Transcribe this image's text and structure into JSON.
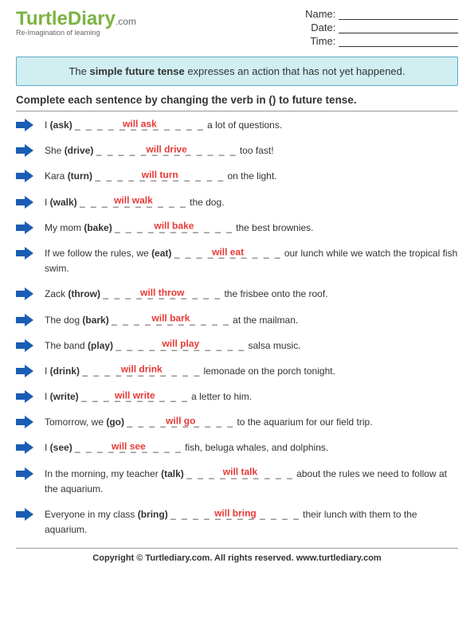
{
  "logo": {
    "part1": "Turtle",
    "part2": "Diary",
    "suffix": ".com",
    "tagline": "Re-Imagination of learning"
  },
  "meta": {
    "fields": [
      {
        "label": "Name:"
      },
      {
        "label": "Date:"
      },
      {
        "label": "Time:"
      }
    ]
  },
  "info_box": {
    "pre": "The ",
    "bold": "simple future tense",
    "post": " expresses an action that has not yet happened."
  },
  "instructions": "Complete each sentence by changing the verb in () to future tense.",
  "arrow_color": "#1a5db4",
  "answer_color": "#e53935",
  "info_bg": "#d1eef0",
  "info_border": "#5ca8c4",
  "questions": [
    {
      "pre": "I ",
      "verb": "(ask)",
      "blank": "_ _ _ _ _ _ _ _ _ _ _ _",
      "answer": "will ask",
      "post": " a lot of questions."
    },
    {
      "pre": "She ",
      "verb": "(drive)",
      "blank": "_ _ _ _ _ _ _ _ _ _ _ _ _",
      "answer": "will drive",
      "post": " too fast!"
    },
    {
      "pre": "Kara ",
      "verb": "(turn)",
      "blank": "_ _ _ _ _ _ _ _ _ _ _ _",
      "answer": "will turn",
      "post": " on the light."
    },
    {
      "pre": "I ",
      "verb": "(walk)",
      "blank": "_ _ _ _ _ _ _ _ _ _",
      "answer": "will walk",
      "post": " the dog."
    },
    {
      "pre": "My mom ",
      "verb": "(bake)",
      "blank": "_ _ _ _ _ _ _ _ _ _ _",
      "answer": "will bake",
      "post": " the best brownies."
    },
    {
      "pre": "If we follow the rules, we ",
      "verb": "(eat)",
      "blank": "_ _ _ _ _ _ _ _ _ _",
      "answer": "will eat",
      "post": " our lunch while we watch the tropical fish swim."
    },
    {
      "pre": "Zack ",
      "verb": "(throw)",
      "blank": "_ _ _ _ _ _ _ _ _ _ _",
      "answer": "will throw",
      "post": " the frisbee onto the roof."
    },
    {
      "pre": "The dog ",
      "verb": "(bark)",
      "blank": "_ _ _ _ _ _ _ _ _ _ _",
      "answer": "will bark",
      "post": " at the mailman."
    },
    {
      "pre": "The band ",
      "verb": "(play)",
      "blank": "_ _ _ _ _ _ _ _ _ _ _ _",
      "answer": "will play",
      "post": " salsa music."
    },
    {
      "pre": "I ",
      "verb": "(drink)",
      "blank": "_ _ _ _ _ _ _ _ _ _ _",
      "answer": "will drink",
      "post": " lemonade on the porch tonight."
    },
    {
      "pre": "I ",
      "verb": "(write)",
      "blank": "_ _ _ _ _ _ _ _ _ _",
      "answer": "will write",
      "post": " a letter to him."
    },
    {
      "pre": "Tomorrow, we ",
      "verb": "(go)",
      "blank": "_ _ _ _ _ _ _ _ _ _",
      "answer": "will go",
      "post": " to the aquarium for our field trip."
    },
    {
      "pre": "I ",
      "verb": "(see)",
      "blank": "_ _ _ _ _ _ _ _ _ _",
      "answer": "will see",
      "post": " fish, beluga whales, and dolphins."
    },
    {
      "pre": "In the morning, my teacher ",
      "verb": "(talk)",
      "blank": "_ _ _ _ _ _ _ _ _ _",
      "answer": "will talk",
      "post": " about the rules we need to follow at the aquarium."
    },
    {
      "pre": "Everyone in my class ",
      "verb": "(bring)",
      "blank": "_ _ _ _ _ _ _ _ _ _ _ _",
      "answer": "will bring",
      "post": " their lunch with them to the aquarium."
    }
  ],
  "footer": "Copyright © Turtlediary.com. All rights reserved.  www.turtlediary.com"
}
